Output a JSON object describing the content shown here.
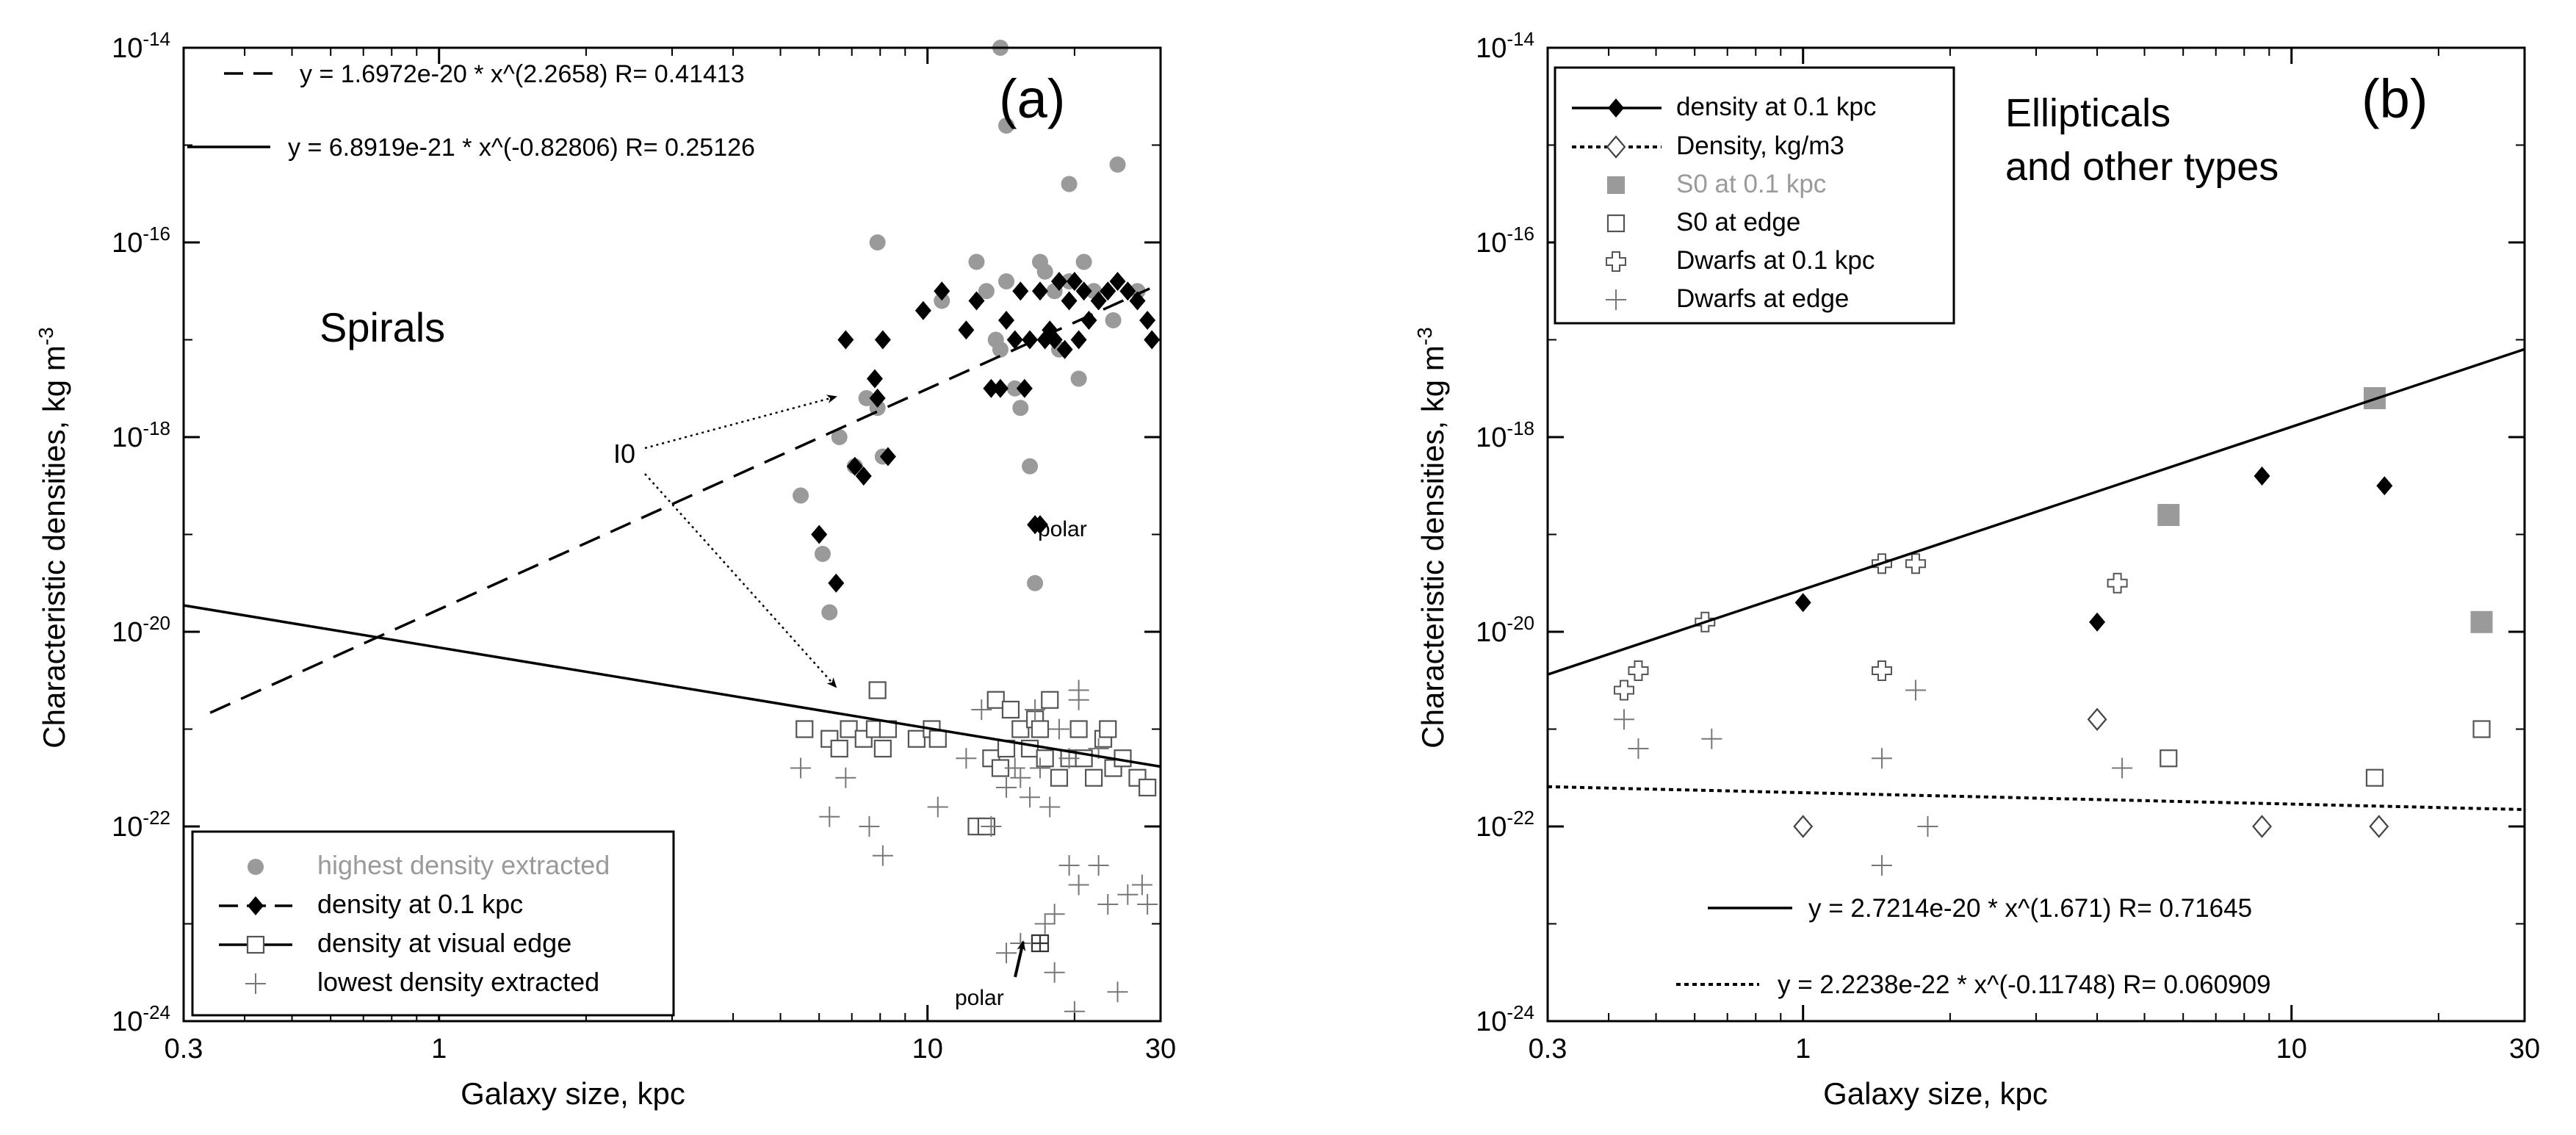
{
  "chart_data": [
    {
      "id": "a",
      "type": "scatter",
      "panel_label": "(a)",
      "annotation": "Spirals",
      "xlabel": "Galaxy size, kpc",
      "ylabel": "Characteristic densities, kg m-3",
      "ylabel_main": "Characteristic densities, kg m",
      "ylabel_sup": "-3",
      "xscale": "log",
      "yscale": "log",
      "xlim": [
        0.3,
        30
      ],
      "ylim": [
        1e-24,
        1e-14
      ],
      "xticks": [
        {
          "v": 0.3,
          "label": "0.3"
        },
        {
          "v": 1,
          "label": "1"
        },
        {
          "v": 10,
          "label": "10"
        },
        {
          "v": 30,
          "label": "30"
        }
      ],
      "yticks": [
        {
          "v": -24,
          "mant": "10",
          "exp": "-24"
        },
        {
          "v": -22,
          "mant": "10",
          "exp": "-22"
        },
        {
          "v": -20,
          "mant": "10",
          "exp": "-20"
        },
        {
          "v": -18,
          "mant": "10",
          "exp": "-18"
        },
        {
          "v": -16,
          "mant": "10",
          "exp": "-16"
        },
        {
          "v": -14,
          "mant": "10",
          "exp": "-14"
        }
      ],
      "equations": [
        {
          "text": "y = 1.6972e-20 * x^(2.2658)   R= 0.41413",
          "style": "dashed"
        },
        {
          "text": "y = 6.8919e-21 * x^(-0.82806)   R= 0.25126",
          "style": "solid"
        }
      ],
      "fits": [
        {
          "name": "density at 0.1 kpc fit",
          "a": 1.6972e-20,
          "b": 2.2658,
          "style": "dashed",
          "x_range": [
            0.3,
            30
          ]
        },
        {
          "name": "density at visual edge fit",
          "a": 6.8919e-21,
          "b": -0.82806,
          "style": "solid",
          "x_range": [
            0.3,
            30
          ]
        }
      ],
      "annotations": [
        {
          "text": "I0",
          "kind": "label"
        },
        {
          "text": "polar",
          "kind": "label"
        },
        {
          "text": "polar",
          "kind": "label"
        }
      ],
      "legend": {
        "placement": "bottom-left",
        "entries": [
          {
            "label": "highest density extracted",
            "marker": "circle",
            "color": "#9a9a9a"
          },
          {
            "label": "density at 0.1 kpc",
            "marker": "diamond",
            "color": "#000000",
            "line": "dashed"
          },
          {
            "label": "density at visual edge",
            "marker": "square-open",
            "color": "#555555",
            "line": "solid"
          },
          {
            "label": "lowest density extracted",
            "marker": "plus",
            "color": "#777777"
          }
        ]
      },
      "series": [
        {
          "name": "highest density extracted",
          "marker": "circle",
          "points": [
            [
              5.5,
              -18.6
            ],
            [
              6.1,
              -19.2
            ],
            [
              6.3,
              -19.8
            ],
            [
              6.6,
              -18.0
            ],
            [
              7.1,
              -18.3
            ],
            [
              7.5,
              -17.6
            ],
            [
              7.9,
              -16.0
            ],
            [
              7.9,
              -17.7
            ],
            [
              8.1,
              -18.2
            ],
            [
              10.7,
              -16.6
            ],
            [
              12.6,
              -16.2
            ],
            [
              13.2,
              -16.5
            ],
            [
              13.8,
              -17.0
            ],
            [
              14.1,
              -17.1
            ],
            [
              14.5,
              -16.4
            ],
            [
              15.1,
              -17.5
            ],
            [
              15.5,
              -17.7
            ],
            [
              16.2,
              -18.3
            ],
            [
              16.6,
              -19.5
            ],
            [
              17.0,
              -16.2
            ],
            [
              17.4,
              -16.3
            ],
            [
              18.2,
              -16.5
            ],
            [
              18.6,
              -17.1
            ],
            [
              19.5,
              -16.4
            ],
            [
              19.5,
              -15.4
            ],
            [
              20.4,
              -17.4
            ],
            [
              20.9,
              -16.2
            ],
            [
              21.9,
              -16.5
            ],
            [
              24.0,
              -16.8
            ],
            [
              24.5,
              -15.2
            ],
            [
              26.9,
              -16.5
            ],
            [
              14.5,
              -14.8
            ],
            [
              14.1,
              -14.0
            ]
          ]
        },
        {
          "name": "density at 0.1 kpc",
          "marker": "diamond",
          "points": [
            [
              6.0,
              -19.0
            ],
            [
              6.5,
              -19.5
            ],
            [
              6.8,
              -17.0
            ],
            [
              7.1,
              -18.3
            ],
            [
              7.4,
              -18.4
            ],
            [
              7.8,
              -17.4
            ],
            [
              8.1,
              -17.0
            ],
            [
              7.9,
              -17.6
            ],
            [
              8.3,
              -18.2
            ],
            [
              9.8,
              -16.7
            ],
            [
              10.7,
              -16.5
            ],
            [
              12.0,
              -16.9
            ],
            [
              12.6,
              -16.6
            ],
            [
              13.5,
              -17.5
            ],
            [
              14.1,
              -17.5
            ],
            [
              14.5,
              -16.8
            ],
            [
              15.1,
              -17.0
            ],
            [
              15.5,
              -16.5
            ],
            [
              15.8,
              -17.5
            ],
            [
              16.2,
              -17.0
            ],
            [
              16.6,
              -18.9
            ],
            [
              17.0,
              -16.5
            ],
            [
              17.4,
              -17.0
            ],
            [
              17.8,
              -16.9
            ],
            [
              18.2,
              -17.0
            ],
            [
              18.6,
              -16.4
            ],
            [
              19.1,
              -17.1
            ],
            [
              19.5,
              -16.6
            ],
            [
              20.0,
              -16.4
            ],
            [
              20.4,
              -17.0
            ],
            [
              20.9,
              -16.5
            ],
            [
              21.4,
              -16.8
            ],
            [
              22.4,
              -16.6
            ],
            [
              23.4,
              -16.5
            ],
            [
              24.5,
              -16.4
            ],
            [
              25.7,
              -16.5
            ],
            [
              26.9,
              -16.6
            ],
            [
              28.2,
              -16.8
            ],
            [
              28.8,
              -17.0
            ]
          ]
        },
        {
          "name": "density at visual edge",
          "marker": "square-open",
          "points": [
            [
              5.6,
              -21.0
            ],
            [
              6.3,
              -21.1
            ],
            [
              6.6,
              -21.2
            ],
            [
              6.9,
              -21.0
            ],
            [
              7.4,
              -21.1
            ],
            [
              7.8,
              -21.0
            ],
            [
              7.9,
              -20.6
            ],
            [
              8.1,
              -21.2
            ],
            [
              8.3,
              -21.0
            ],
            [
              9.5,
              -21.1
            ],
            [
              10.2,
              -21.0
            ],
            [
              10.5,
              -21.1
            ],
            [
              12.6,
              -22.0
            ],
            [
              13.2,
              -22.0
            ],
            [
              13.5,
              -21.3
            ],
            [
              13.8,
              -20.7
            ],
            [
              14.1,
              -21.4
            ],
            [
              14.5,
              -21.2
            ],
            [
              14.8,
              -20.8
            ],
            [
              15.5,
              -21.0
            ],
            [
              16.2,
              -21.2
            ],
            [
              16.6,
              -20.9
            ],
            [
              17.0,
              -21.0
            ],
            [
              17.4,
              -21.3
            ],
            [
              17.8,
              -20.7
            ],
            [
              18.6,
              -21.5
            ],
            [
              19.5,
              -21.3
            ],
            [
              20.4,
              -21.0
            ],
            [
              20.9,
              -21.3
            ],
            [
              21.9,
              -21.5
            ],
            [
              22.9,
              -21.1
            ],
            [
              23.4,
              -21.0
            ],
            [
              24.0,
              -21.4
            ],
            [
              25.1,
              -21.3
            ],
            [
              26.9,
              -21.5
            ],
            [
              28.2,
              -21.6
            ]
          ]
        },
        {
          "name": "lowest density extracted",
          "marker": "plus",
          "points": [
            [
              5.5,
              -21.4
            ],
            [
              6.3,
              -21.9
            ],
            [
              6.8,
              -21.5
            ],
            [
              7.6,
              -22.0
            ],
            [
              8.1,
              -22.3
            ],
            [
              10.5,
              -21.8
            ],
            [
              12.0,
              -21.3
            ],
            [
              12.9,
              -20.8
            ],
            [
              13.5,
              -22.0
            ],
            [
              14.5,
              -21.6
            ],
            [
              15.1,
              -21.4
            ],
            [
              15.5,
              -21.5
            ],
            [
              16.2,
              -21.7
            ],
            [
              16.6,
              -20.8
            ],
            [
              17.0,
              -21.4
            ],
            [
              17.8,
              -21.8
            ],
            [
              18.6,
              -21.0
            ],
            [
              19.5,
              -21.3
            ],
            [
              20.4,
              -20.6
            ],
            [
              22.4,
              -21.2
            ],
            [
              14.5,
              -23.3
            ],
            [
              15.5,
              -23.2
            ],
            [
              17.4,
              -23.0
            ],
            [
              18.2,
              -22.9
            ],
            [
              19.5,
              -22.4
            ],
            [
              20.4,
              -22.6
            ],
            [
              22.4,
              -22.4
            ],
            [
              23.4,
              -22.8
            ],
            [
              25.7,
              -22.7
            ],
            [
              27.5,
              -22.6
            ],
            [
              28.2,
              -22.8
            ],
            [
              24.5,
              -23.7
            ],
            [
              18.2,
              -23.5
            ],
            [
              20.0,
              -23.9
            ],
            [
              20.4,
              -20.7
            ]
          ]
        },
        {
          "name": "polar (0.1 kpc)",
          "marker": "diamond",
          "points": [
            [
              17.0,
              -18.9
            ]
          ]
        },
        {
          "name": "polar (edge)",
          "marker": "square-plus",
          "points": [
            [
              17.0,
              -23.2
            ]
          ]
        }
      ]
    },
    {
      "id": "b",
      "type": "scatter",
      "panel_label": "(b)",
      "annotation_lines": [
        "Ellipticals",
        "and other types"
      ],
      "xlabel": "Galaxy size, kpc",
      "ylabel": "Characteristic densities, kg m-3",
      "ylabel_main": "Characteristic densities, kg m",
      "ylabel_sup": "-3",
      "xscale": "log",
      "yscale": "log",
      "xlim": [
        0.3,
        30
      ],
      "ylim": [
        1e-24,
        1e-14
      ],
      "xticks": [
        {
          "v": 0.3,
          "label": "0.3"
        },
        {
          "v": 1,
          "label": "1"
        },
        {
          "v": 10,
          "label": "10"
        },
        {
          "v": 30,
          "label": "30"
        }
      ],
      "yticks": [
        {
          "v": -24,
          "mant": "10",
          "exp": "-24"
        },
        {
          "v": -22,
          "mant": "10",
          "exp": "-22"
        },
        {
          "v": -20,
          "mant": "10",
          "exp": "-20"
        },
        {
          "v": -18,
          "mant": "10",
          "exp": "-18"
        },
        {
          "v": -16,
          "mant": "10",
          "exp": "-16"
        },
        {
          "v": -14,
          "mant": "10",
          "exp": "-14"
        }
      ],
      "equations": [
        {
          "text": "y = 2.7214e-20 * x^(1.671)   R= 0.71645",
          "style": "solid"
        },
        {
          "text": "y = 2.2238e-22 * x^(-0.11748)   R= 0.060909",
          "style": "dotted"
        }
      ],
      "fits": [
        {
          "name": "density at 0.1 kpc fit",
          "a": 2.7214e-20,
          "b": 1.671,
          "style": "solid",
          "x_range": [
            0.3,
            30
          ]
        },
        {
          "name": "Density fit",
          "a": 2.2238e-22,
          "b": -0.11748,
          "style": "dotted",
          "x_range": [
            0.3,
            30
          ]
        }
      ],
      "legend": {
        "placement": "top-left",
        "entries": [
          {
            "label": "density at 0.1 kpc",
            "marker": "diamond",
            "color": "#000000",
            "line": "solid"
          },
          {
            "label": "Density, kg/m3",
            "marker": "diamond-open",
            "color": "#000000",
            "line": "dotted"
          },
          {
            "label": "S0 at 0.1 kpc",
            "marker": "square",
            "color": "#9a9a9a"
          },
          {
            "label": "S0 at edge",
            "marker": "square-open",
            "color": "#555555"
          },
          {
            "label": "Dwarfs at 0.1 kpc",
            "marker": "cross-open",
            "color": "#555555"
          },
          {
            "label": "Dwarfs at edge",
            "marker": "plus",
            "color": "#777777"
          }
        ]
      },
      "series": [
        {
          "name": "density at 0.1 kpc",
          "marker": "diamond",
          "points": [
            [
              1.0,
              -19.7
            ],
            [
              4.0,
              -19.9
            ],
            [
              8.7,
              -18.4
            ],
            [
              15.5,
              -18.5
            ]
          ]
        },
        {
          "name": "Density, kg/m3",
          "marker": "diamond-open",
          "points": [
            [
              1.0,
              -22.0
            ],
            [
              4.0,
              -20.9
            ],
            [
              8.7,
              -22.0
            ],
            [
              15.1,
              -22.0
            ]
          ]
        },
        {
          "name": "S0 at 0.1 kpc",
          "marker": "square",
          "points": [
            [
              5.6,
              -18.8
            ],
            [
              14.8,
              -17.6
            ],
            [
              24.5,
              -19.9
            ]
          ]
        },
        {
          "name": "S0 at edge",
          "marker": "square-open",
          "points": [
            [
              5.6,
              -21.3
            ],
            [
              14.8,
              -21.5
            ],
            [
              24.5,
              -21.0
            ]
          ]
        },
        {
          "name": "Dwarfs at 0.1 kpc",
          "marker": "cross-open",
          "points": [
            [
              0.43,
              -20.6
            ],
            [
              0.46,
              -20.4
            ],
            [
              0.63,
              -19.9
            ],
            [
              1.45,
              -19.3
            ],
            [
              1.45,
              -20.4
            ],
            [
              1.7,
              -19.3
            ],
            [
              4.4,
              -19.5
            ]
          ]
        },
        {
          "name": "Dwarfs at edge",
          "marker": "plus",
          "points": [
            [
              0.43,
              -20.9
            ],
            [
              0.46,
              -21.2
            ],
            [
              0.65,
              -21.1
            ],
            [
              1.45,
              -21.3
            ],
            [
              1.45,
              -22.4
            ],
            [
              1.7,
              -20.6
            ],
            [
              1.8,
              -22.0
            ],
            [
              4.5,
              -21.4
            ]
          ]
        }
      ]
    }
  ]
}
